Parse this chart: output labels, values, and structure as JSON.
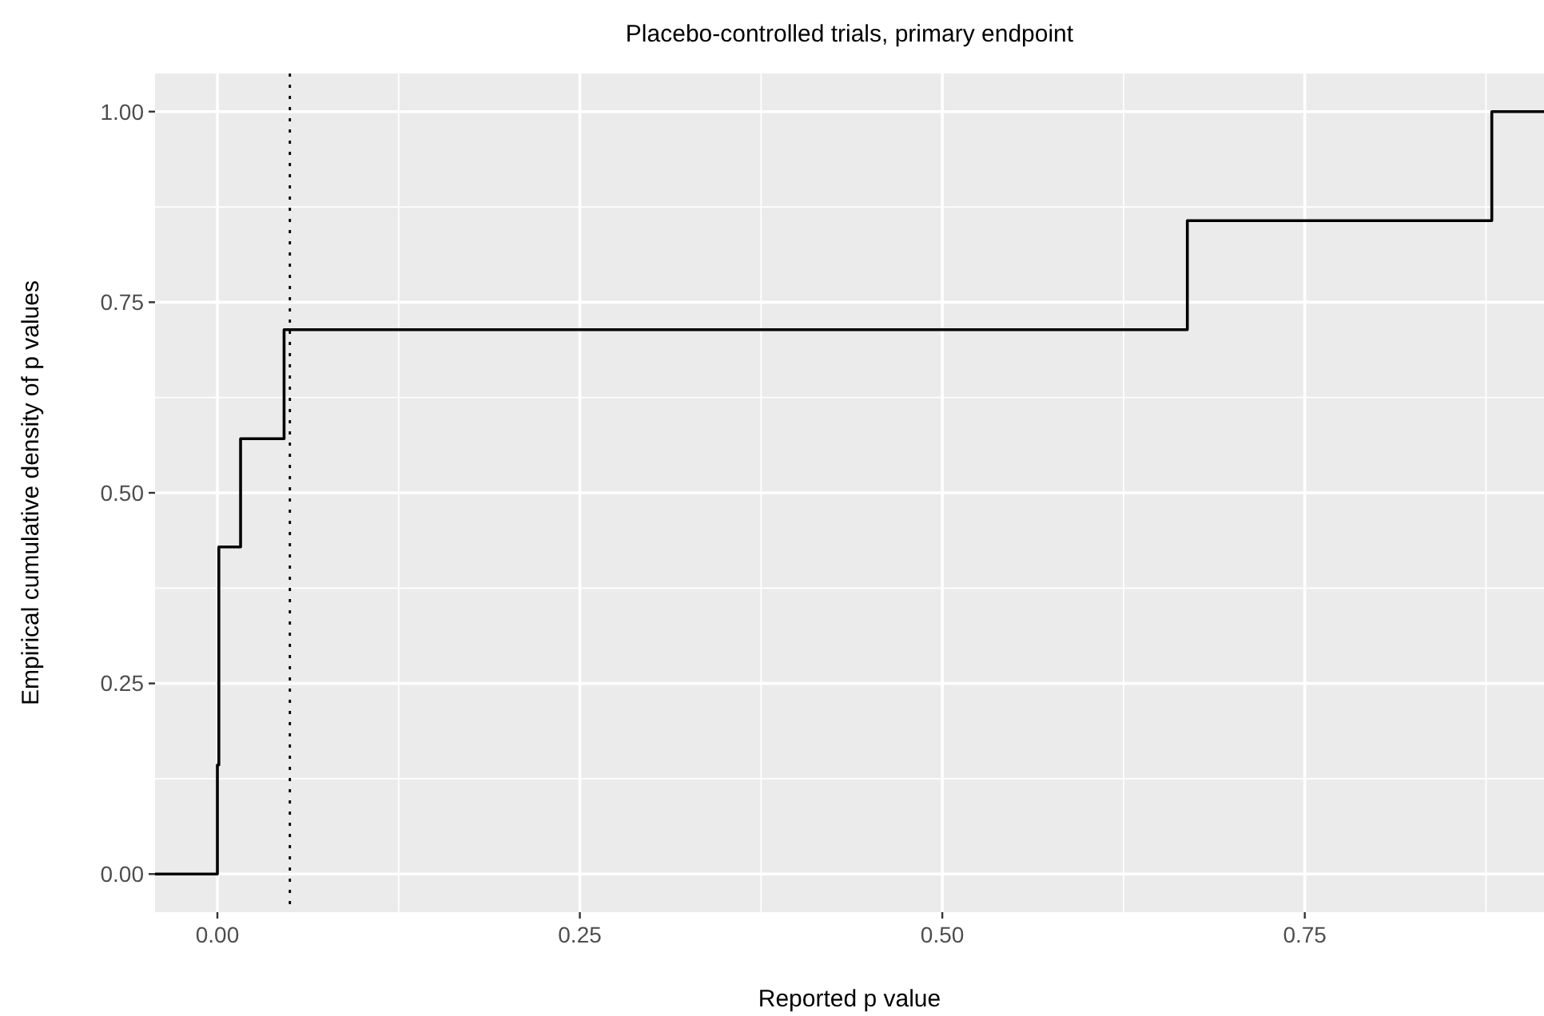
{
  "chart_data": {
    "type": "step",
    "title": "Placebo-controlled trials, primary endpoint",
    "xlabel": "Reported p value",
    "ylabel": "Empirical cumulative density of p values",
    "x": [
      -0.043,
      0.0,
      0.001,
      0.016,
      0.046,
      0.669,
      0.879,
      0.915
    ],
    "series": [
      {
        "color": "#000000",
        "values": [
          0,
          0.143,
          0.429,
          0.571,
          0.714,
          0.857,
          1.0,
          1.0
        ]
      }
    ],
    "xlim": [
      -0.043,
      0.915
    ],
    "ylim": [
      -0.05,
      1.05
    ],
    "xticks": [
      {
        "value": 0,
        "label": "0.00"
      },
      {
        "value": 0.25,
        "label": "0.25"
      },
      {
        "value": 0.5,
        "label": "0.50"
      },
      {
        "value": 0.75,
        "label": "0.75"
      }
    ],
    "yticks": [
      {
        "value": 0,
        "label": "0.00"
      },
      {
        "value": 0.25,
        "label": "0.25"
      },
      {
        "value": 0.5,
        "label": "0.50"
      },
      {
        "value": 0.75,
        "label": "0.75"
      },
      {
        "value": 1,
        "label": "1.00"
      }
    ],
    "ref_lines": [
      {
        "axis": "x",
        "value": 0.05,
        "color": "#000000",
        "line_style": "dotted"
      }
    ],
    "grid": true
  }
}
